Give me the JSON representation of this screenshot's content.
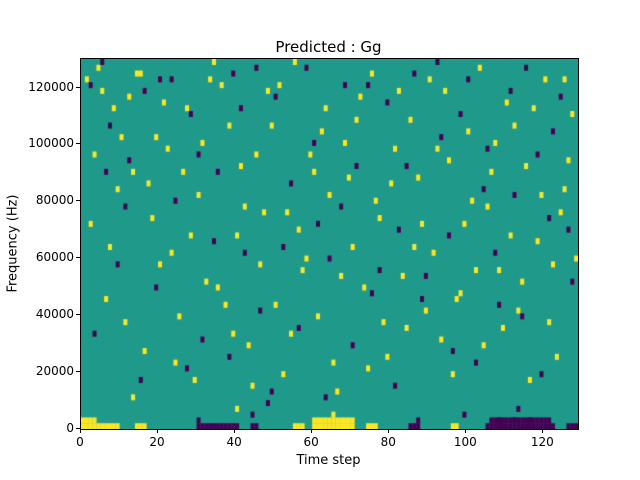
{
  "figure": {
    "title": "Predicted : Gg",
    "xlabel": "Time step",
    "ylabel": "Frequency (Hz)"
  },
  "chart_data": {
    "type": "heatmap",
    "title": "Predicted : Gg",
    "xlabel": "Time step",
    "ylabel": "Frequency (Hz)",
    "x_range": [
      0,
      129
    ],
    "y_range": [
      0,
      130048
    ],
    "grid": {
      "time_steps": 129,
      "freq_bins": 64,
      "bin_hz": 2032,
      "gridlines": "off"
    },
    "legend": "none",
    "x_ticks": [
      0,
      20,
      40,
      60,
      80,
      100,
      120
    ],
    "y_ticks": [
      0,
      20000,
      40000,
      60000,
      80000,
      100000,
      120000
    ],
    "colors": {
      "background_value_color": "#1f9a8a",
      "low_value_color": "#440154",
      "high_value_color": "#fde725",
      "axis_color": "#000000",
      "figure_background": "#ffffff"
    },
    "cells": {
      "yellow": [
        [
          1,
          60
        ],
        [
          4,
          62
        ],
        [
          5,
          58
        ],
        [
          8,
          55
        ],
        [
          10,
          50
        ],
        [
          13,
          44
        ],
        [
          15,
          61
        ],
        [
          18,
          36
        ],
        [
          20,
          28
        ],
        [
          22,
          48
        ],
        [
          25,
          19
        ],
        [
          27,
          55
        ],
        [
          30,
          40
        ],
        [
          33,
          60
        ],
        [
          35,
          24
        ],
        [
          38,
          52
        ],
        [
          40,
          33
        ],
        [
          43,
          14
        ],
        [
          45,
          47
        ],
        [
          48,
          58
        ],
        [
          50,
          21
        ],
        [
          53,
          37
        ],
        [
          55,
          63
        ],
        [
          58,
          29
        ],
        [
          60,
          44
        ],
        [
          63,
          55
        ],
        [
          65,
          11
        ],
        [
          68,
          49
        ],
        [
          70,
          31
        ],
        [
          72,
          57
        ],
        [
          75,
          61
        ],
        [
          78,
          18
        ],
        [
          80,
          42
        ],
        [
          83,
          26
        ],
        [
          85,
          53
        ],
        [
          88,
          35
        ],
        [
          90,
          60
        ],
        [
          93,
          15
        ],
        [
          95,
          46
        ],
        [
          98,
          23
        ],
        [
          100,
          51
        ],
        [
          103,
          62
        ],
        [
          105,
          38
        ],
        [
          108,
          27
        ],
        [
          110,
          56
        ],
        [
          113,
          20
        ],
        [
          115,
          45
        ],
        [
          118,
          32
        ],
        [
          120,
          60
        ],
        [
          123,
          12
        ],
        [
          125,
          41
        ],
        [
          127,
          54
        ],
        [
          2,
          35
        ],
        [
          6,
          22
        ],
        [
          9,
          41
        ],
        [
          12,
          57
        ],
        [
          16,
          13
        ],
        [
          19,
          50
        ],
        [
          23,
          30
        ],
        [
          26,
          44
        ],
        [
          29,
          8
        ],
        [
          32,
          25
        ],
        [
          36,
          59
        ],
        [
          39,
          16
        ],
        [
          42,
          38
        ],
        [
          46,
          28
        ],
        [
          49,
          52
        ],
        [
          52,
          9
        ],
        [
          56,
          34
        ],
        [
          59,
          47
        ],
        [
          61,
          19
        ],
        [
          64,
          40
        ],
        [
          67,
          26
        ],
        [
          71,
          53
        ],
        [
          74,
          10
        ],
        [
          77,
          36
        ],
        [
          81,
          48
        ],
        [
          84,
          17
        ],
        [
          87,
          43
        ],
        [
          91,
          30
        ],
        [
          94,
          58
        ],
        [
          97,
          22
        ],
        [
          101,
          39
        ],
        [
          104,
          14
        ],
        [
          107,
          49
        ],
        [
          111,
          33
        ],
        [
          114,
          25
        ],
        [
          117,
          55
        ],
        [
          121,
          18
        ],
        [
          124,
          37
        ],
        [
          126,
          46
        ],
        [
          128,
          29
        ],
        [
          3,
          47
        ],
        [
          7,
          31
        ],
        [
          11,
          18
        ],
        [
          14,
          61
        ],
        [
          17,
          42
        ],
        [
          21,
          56
        ],
        [
          24,
          11
        ],
        [
          28,
          33
        ],
        [
          31,
          49
        ],
        [
          34,
          63
        ],
        [
          37,
          21
        ],
        [
          41,
          45
        ],
        [
          44,
          7
        ],
        [
          47,
          37
        ],
        [
          51,
          59
        ],
        [
          54,
          16
        ],
        [
          57,
          27
        ],
        [
          62,
          51
        ],
        [
          66,
          6
        ],
        [
          69,
          43
        ],
        [
          73,
          24
        ],
        [
          76,
          39
        ],
        [
          79,
          12
        ],
        [
          82,
          58
        ],
        [
          86,
          31
        ],
        [
          89,
          20
        ],
        [
          92,
          48
        ],
        [
          96,
          9
        ],
        [
          99,
          35
        ],
        [
          102,
          27
        ],
        [
          106,
          44
        ],
        [
          109,
          17
        ],
        [
          112,
          52
        ],
        [
          116,
          8
        ],
        [
          119,
          40
        ],
        [
          122,
          28
        ],
        [
          125,
          60
        ],
        [
          13,
          5
        ],
        [
          40,
          3
        ],
        [
          65,
          2
        ]
      ],
      "purple": [
        [
          2,
          59
        ],
        [
          5,
          63
        ],
        [
          9,
          28
        ],
        [
          12,
          46
        ],
        [
          16,
          58
        ],
        [
          20,
          60
        ],
        [
          24,
          39
        ],
        [
          28,
          54
        ],
        [
          31,
          15
        ],
        [
          35,
          44
        ],
        [
          39,
          61
        ],
        [
          42,
          30
        ],
        [
          46,
          20
        ],
        [
          50,
          57
        ],
        [
          54,
          42
        ],
        [
          58,
          62
        ],
        [
          61,
          35
        ],
        [
          64,
          29
        ],
        [
          68,
          59
        ],
        [
          71,
          45
        ],
        [
          75,
          23
        ],
        [
          79,
          56
        ],
        [
          82,
          34
        ],
        [
          86,
          61
        ],
        [
          89,
          26
        ],
        [
          93,
          50
        ],
        [
          96,
          13
        ],
        [
          100,
          60
        ],
        [
          104,
          41
        ],
        [
          107,
          30
        ],
        [
          111,
          58
        ],
        [
          114,
          19
        ],
        [
          118,
          47
        ],
        [
          121,
          36
        ],
        [
          124,
          57
        ],
        [
          127,
          25
        ],
        [
          3,
          16
        ],
        [
          7,
          52
        ],
        [
          11,
          38
        ],
        [
          15,
          8
        ],
        [
          19,
          24
        ],
        [
          23,
          60
        ],
        [
          27,
          10
        ],
        [
          30,
          47
        ],
        [
          34,
          32
        ],
        [
          38,
          12
        ],
        [
          41,
          55
        ],
        [
          45,
          62
        ],
        [
          49,
          6
        ],
        [
          52,
          31
        ],
        [
          56,
          17
        ],
        [
          60,
          49
        ],
        [
          63,
          5
        ],
        [
          67,
          38
        ],
        [
          70,
          14
        ],
        [
          74,
          59
        ],
        [
          77,
          27
        ],
        [
          81,
          7
        ],
        [
          84,
          45
        ],
        [
          88,
          22
        ],
        [
          92,
          63
        ],
        [
          95,
          33
        ],
        [
          98,
          54
        ],
        [
          102,
          11
        ],
        [
          105,
          48
        ],
        [
          108,
          21
        ],
        [
          112,
          40
        ],
        [
          115,
          62
        ],
        [
          119,
          9
        ],
        [
          122,
          51
        ],
        [
          126,
          34
        ],
        [
          44,
          2
        ],
        [
          30,
          1
        ],
        [
          87,
          1
        ],
        [
          99,
          2
        ],
        [
          113,
          3
        ],
        [
          6,
          44
        ],
        [
          48,
          4
        ],
        [
          108,
          1
        ],
        [
          112,
          1
        ],
        [
          116,
          1
        ]
      ],
      "yellow_runs": [
        [
          0,
          9,
          0
        ],
        [
          0,
          3,
          1
        ],
        [
          14,
          16,
          0
        ],
        [
          55,
          57,
          0
        ],
        [
          60,
          70,
          0
        ],
        [
          60,
          70,
          1
        ],
        [
          74,
          76,
          0
        ],
        [
          96,
          97,
          0
        ]
      ],
      "purple_runs": [
        [
          30,
          40,
          0
        ],
        [
          44,
          45,
          0
        ],
        [
          85,
          87,
          0
        ],
        [
          105,
          122,
          0
        ],
        [
          106,
          121,
          1
        ],
        [
          126,
          128,
          0
        ]
      ]
    }
  }
}
